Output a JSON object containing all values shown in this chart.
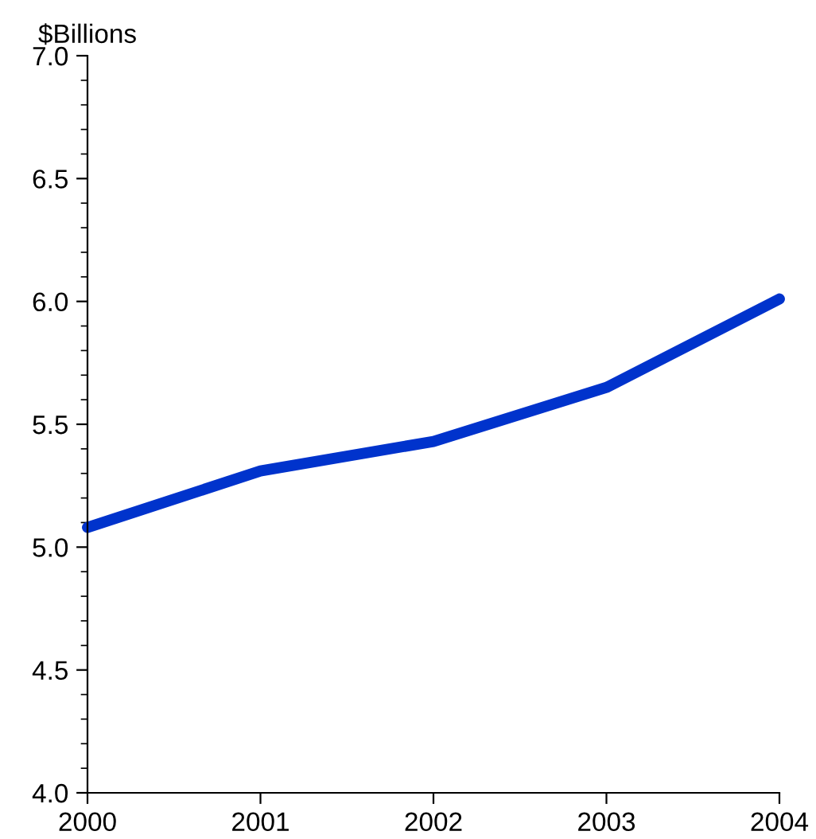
{
  "chart_data": {
    "type": "line",
    "ylabel": "$Billions",
    "x": [
      2000,
      2001,
      2002,
      2003,
      2004
    ],
    "series": [
      {
        "color": "#0033cc",
        "values": [
          5.08,
          5.31,
          5.43,
          5.65,
          6.01
        ]
      }
    ],
    "xlim": [
      2000,
      2004
    ],
    "xticks": [
      2000,
      2001,
      2002,
      2003,
      2004
    ],
    "ylim": [
      4.0,
      7.0
    ],
    "yticks": [
      {
        "value": 4.0,
        "label": "4.0"
      },
      {
        "value": 4.5,
        "label": "4.5"
      },
      {
        "value": 5.0,
        "label": "5.0"
      },
      {
        "value": 5.5,
        "label": "5.5"
      },
      {
        "value": 6.0,
        "label": "6.0"
      },
      {
        "value": 6.5,
        "label": "6.5"
      },
      {
        "value": 7.0,
        "label": "7.0"
      }
    ],
    "grid": false,
    "legend": false,
    "marker": "none",
    "line_style": "solid"
  }
}
